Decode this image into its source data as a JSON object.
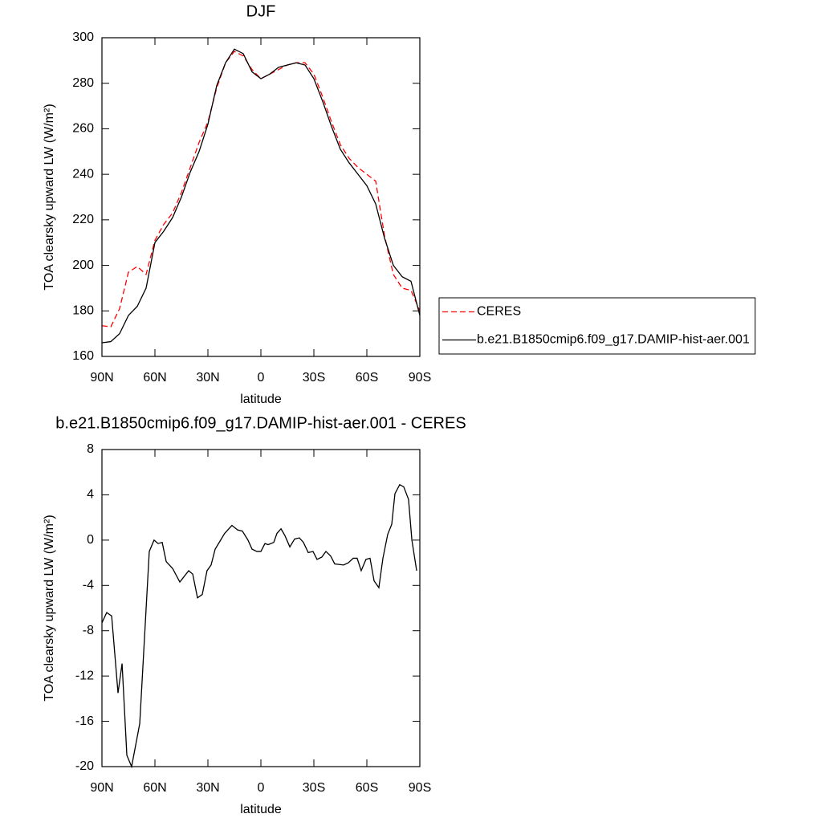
{
  "chart_data": [
    {
      "type": "line",
      "title": "DJF",
      "xlabel": "latitude",
      "ylabel": "TOA clearsky upward LW (W/m²)",
      "x": [
        90,
        85,
        80,
        75,
        70,
        65,
        60,
        55,
        50,
        45,
        40,
        35,
        30,
        25,
        20,
        15,
        10,
        5,
        0,
        -5,
        -10,
        -15,
        -20,
        -25,
        -30,
        -35,
        -40,
        -45,
        -50,
        -55,
        -60,
        -65,
        -70,
        -75,
        -80,
        -85,
        -90
      ],
      "series": [
        {
          "name": "CERES",
          "color": "#ff0000",
          "linestyle": "dashed",
          "values": [
            173.5,
            173,
            181,
            197,
            199.5,
            196,
            211,
            218,
            223,
            232,
            243,
            254,
            263,
            278,
            289,
            294,
            292,
            286,
            282,
            284,
            286,
            288,
            289,
            289,
            284,
            274,
            263,
            253,
            247,
            243,
            240,
            237,
            213,
            196,
            190,
            189,
            180
          ]
        },
        {
          "name": "b.e21.B1850cmip6.f09_g17.DAMIP-hist-aer.001",
          "color": "#000000",
          "linestyle": "solid",
          "values": [
            166,
            166.5,
            170,
            178,
            182,
            190,
            210,
            215,
            221,
            230,
            241,
            250,
            262,
            279,
            289,
            295,
            293,
            285,
            282,
            284,
            287,
            288,
            289,
            288,
            282,
            272,
            261,
            251,
            245,
            240,
            235,
            227,
            212,
            200,
            195,
            193,
            178
          ]
        }
      ],
      "xlim": [
        90,
        -90
      ],
      "xticks": [
        {
          "value": 90,
          "label": "90N"
        },
        {
          "value": 60,
          "label": "60N"
        },
        {
          "value": 30,
          "label": "30N"
        },
        0,
        {
          "value": -30,
          "label": "30S"
        },
        {
          "value": -60,
          "label": "60S"
        },
        {
          "value": -90,
          "label": "90S"
        }
      ],
      "ylim": [
        160,
        300
      ],
      "yticks": [
        160,
        180,
        200,
        220,
        240,
        260,
        280,
        300
      ],
      "legend": "right"
    },
    {
      "type": "line",
      "title": "b.e21.B1850cmip6.f09_g17.DAMIP-hist-aer.001 - CERES",
      "xlabel": "latitude",
      "ylabel": "TOA clearsky upward LW (W/m²)",
      "x": [
        90,
        87.3,
        84.5,
        80.9,
        78.6,
        75.9,
        73.2,
        68.6,
        63.2,
        60.5,
        58.2,
        55.9,
        53.6,
        50,
        45.9,
        40.9,
        38.6,
        35.9,
        33.2,
        30.5,
        28.2,
        25.9,
        20.5,
        16.4,
        13.2,
        10.5,
        7.3,
        5,
        2.3,
        0,
        -2.3,
        -4.1,
        -7.3,
        -9.1,
        -11.4,
        -13.6,
        -16.4,
        -19.1,
        -21.8,
        -24.1,
        -26.8,
        -29.5,
        -31.8,
        -34.5,
        -36.8,
        -39.5,
        -41.8,
        -46.8,
        -49.5,
        -52.3,
        -54.5,
        -56.8,
        -59.5,
        -61.8,
        -64.1,
        -66.8,
        -69.1,
        -71.8,
        -74.1,
        -75.9,
        -78.6,
        -80.9,
        -83.6,
        -85.5,
        -88.2
      ],
      "color": "#000000",
      "values": [
        -7.3,
        -6.4,
        -6.7,
        -13.5,
        -10.9,
        -19,
        -20,
        -16.2,
        -1,
        0,
        -0.3,
        -0.2,
        -1.9,
        -2.5,
        -3.7,
        -2.7,
        -3,
        -5.1,
        -4.8,
        -2.7,
        -2.2,
        -0.8,
        0.6,
        1.3,
        0.9,
        0.8,
        0,
        -0.8,
        -1,
        -1,
        -0.3,
        -0.4,
        -0.2,
        0.6,
        1,
        0.4,
        -0.6,
        0.1,
        0.2,
        -0.2,
        -1.1,
        -1,
        -1.7,
        -1.5,
        -1,
        -1.4,
        -2.1,
        -2.2,
        -2,
        -1.6,
        -1.6,
        -2.7,
        -1.7,
        -1.6,
        -3.6,
        -4.2,
        -1.6,
        0.5,
        1.4,
        4.1,
        4.9,
        4.7,
        3.6,
        0,
        -2.7
      ],
      "xlim": [
        90,
        -90
      ],
      "xticks": [
        {
          "value": 90,
          "label": "90N"
        },
        {
          "value": 60,
          "label": "60N"
        },
        {
          "value": 30,
          "label": "30N"
        },
        0,
        {
          "value": -30,
          "label": "30S"
        },
        {
          "value": -60,
          "label": "60S"
        },
        {
          "value": -90,
          "label": "90S"
        }
      ],
      "ylim": [
        -20,
        8
      ],
      "yticks": [
        -20,
        -16,
        -12,
        -8,
        -4,
        0,
        4,
        8
      ]
    }
  ]
}
